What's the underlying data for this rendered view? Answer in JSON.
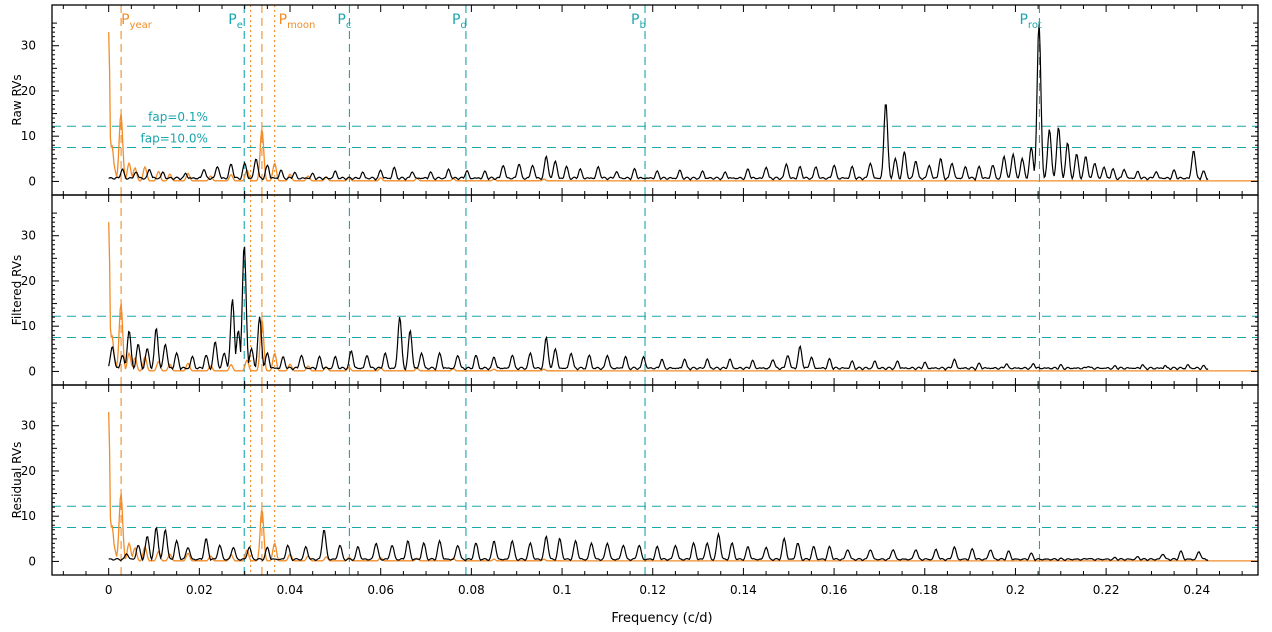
{
  "colors": {
    "orange": "#f28c28",
    "teal": "#1aa6ad",
    "black": "#000000",
    "frame": "#000000"
  },
  "chart_data": {
    "type": "line",
    "xlabel": "Frequency (c/d)",
    "xlim": [
      -0.0125,
      0.2535
    ],
    "ylim": [
      -3,
      39
    ],
    "grid": false,
    "xticks": [
      0,
      0.02,
      0.04,
      0.06,
      0.08,
      0.1,
      0.12,
      0.14,
      0.16,
      0.18,
      0.2,
      0.22,
      0.24
    ],
    "xtick_labels": [
      "0",
      "0.02",
      "0.04",
      "0.06",
      "0.08",
      "0.1",
      "0.12",
      "0.14",
      "0.16",
      "0.18",
      "0.2",
      "0.22",
      "0.24"
    ],
    "yticks": [
      0,
      10,
      20,
      30
    ],
    "ytick_labels": [
      "0",
      "10",
      "20",
      "30"
    ],
    "fap_levels": [
      {
        "label": "fap=0.1%",
        "value": 12.2
      },
      {
        "label": "fap=10.0%",
        "value": 7.5
      }
    ],
    "periods": [
      {
        "base": "P",
        "sub": "year",
        "freq": 0.00274,
        "color": "orange",
        "style": "dashed"
      },
      {
        "base": "P",
        "sub": "e",
        "freq": 0.0299,
        "color": "teal",
        "style": "dashed"
      },
      {
        "base": "P",
        "sub": "",
        "freq": 0.0313,
        "color": "orange",
        "style": "dotted"
      },
      {
        "base": "P",
        "sub": "",
        "freq": 0.0338,
        "color": "orange",
        "style": "dashed"
      },
      {
        "base": "P",
        "sub": "moon",
        "freq": 0.0366,
        "color": "orange",
        "style": "dotted"
      },
      {
        "base": "P",
        "sub": "c",
        "freq": 0.0531,
        "color": "teal",
        "style": "dashed"
      },
      {
        "base": "P",
        "sub": "d",
        "freq": 0.0788,
        "color": "teal",
        "style": "dashed"
      },
      {
        "base": "P",
        "sub": "b",
        "freq": 0.1183,
        "color": "teal",
        "style": "dashed"
      },
      {
        "base": "P",
        "sub": "rot",
        "freq": 0.2053,
        "color": "teal",
        "style": "dashed"
      }
    ],
    "window_function": {
      "name": "window",
      "color": "orange",
      "peaks": [
        [
          0.0,
          33
        ],
        [
          0.0007,
          8
        ],
        [
          0.0012,
          3
        ],
        [
          0.0027,
          15
        ],
        [
          0.0045,
          4
        ],
        [
          0.0058,
          3
        ],
        [
          0.008,
          3.2
        ],
        [
          0.011,
          2.2
        ],
        [
          0.0135,
          1.6
        ],
        [
          0.0175,
          1.8
        ],
        [
          0.0225,
          1.2
        ],
        [
          0.027,
          1.5
        ],
        [
          0.0305,
          2.5
        ],
        [
          0.0338,
          11.5
        ],
        [
          0.0366,
          4.0
        ],
        [
          0.04,
          1.6
        ],
        [
          0.044,
          1.2
        ],
        [
          0.048,
          1.0
        ],
        [
          0.053,
          0.9
        ],
        [
          0.06,
          0.8
        ],
        [
          0.068,
          0.7
        ],
        [
          0.076,
          0.6
        ],
        [
          0.085,
          0.5
        ],
        [
          0.096,
          0.5
        ]
      ]
    },
    "panels": [
      {
        "ylabel": "Raw RVs",
        "series": {
          "color": "black",
          "xmax": 0.2425,
          "peaks": [
            [
              0.003,
              2.5
            ],
            [
              0.006,
              2.0
            ],
            [
              0.009,
              2.5
            ],
            [
              0.012,
              1.8
            ],
            [
              0.017,
              1.5
            ],
            [
              0.021,
              2.5
            ],
            [
              0.024,
              3.2
            ],
            [
              0.027,
              3.8
            ],
            [
              0.03,
              4.0
            ],
            [
              0.0325,
              5.0
            ],
            [
              0.035,
              3.5
            ],
            [
              0.038,
              2.2
            ],
            [
              0.041,
              1.8
            ],
            [
              0.045,
              1.5
            ],
            [
              0.05,
              2.0
            ],
            [
              0.056,
              1.8
            ],
            [
              0.06,
              2.2
            ],
            [
              0.063,
              2.8
            ],
            [
              0.067,
              2.0
            ],
            [
              0.071,
              1.8
            ],
            [
              0.075,
              2.5
            ],
            [
              0.079,
              2.2
            ],
            [
              0.083,
              2.0
            ],
            [
              0.087,
              3.5
            ],
            [
              0.0905,
              3.8
            ],
            [
              0.0935,
              3.5
            ],
            [
              0.0965,
              5.5
            ],
            [
              0.0985,
              4.5
            ],
            [
              0.101,
              3.0
            ],
            [
              0.104,
              2.5
            ],
            [
              0.108,
              3.0
            ],
            [
              0.112,
              2.0
            ],
            [
              0.116,
              2.5
            ],
            [
              0.121,
              2.0
            ],
            [
              0.126,
              2.2
            ],
            [
              0.131,
              2.0
            ],
            [
              0.136,
              1.8
            ],
            [
              0.141,
              2.5
            ],
            [
              0.145,
              3.0
            ],
            [
              0.1495,
              3.8
            ],
            [
              0.1525,
              3.0
            ],
            [
              0.156,
              3.2
            ],
            [
              0.16,
              3.5
            ],
            [
              0.164,
              3.0
            ],
            [
              0.168,
              4.0
            ],
            [
              0.1714,
              17.5
            ],
            [
              0.1735,
              5.0
            ],
            [
              0.1755,
              6.5
            ],
            [
              0.178,
              4.5
            ],
            [
              0.181,
              3.5
            ],
            [
              0.1835,
              5.0
            ],
            [
              0.186,
              4.0
            ],
            [
              0.189,
              3.0
            ],
            [
              0.192,
              3.0
            ],
            [
              0.195,
              3.5
            ],
            [
              0.1975,
              5.5
            ],
            [
              0.1995,
              6.0
            ],
            [
              0.2015,
              5.0
            ],
            [
              0.2035,
              7.5
            ],
            [
              0.2052,
              35.0
            ],
            [
              0.2075,
              11.5
            ],
            [
              0.2095,
              12.0
            ],
            [
              0.2115,
              8.5
            ],
            [
              0.2135,
              6.0
            ],
            [
              0.2155,
              5.5
            ],
            [
              0.2175,
              4.0
            ],
            [
              0.2195,
              3.0
            ],
            [
              0.2215,
              2.5
            ],
            [
              0.224,
              2.5
            ],
            [
              0.227,
              2.0
            ],
            [
              0.231,
              2.0
            ],
            [
              0.235,
              2.2
            ],
            [
              0.2393,
              6.8
            ],
            [
              0.2415,
              2.0
            ]
          ]
        }
      },
      {
        "ylabel": "Filtered RVs",
        "series": {
          "color": "black",
          "xmax": 0.2425,
          "peaks": [
            [
              0.0008,
              5.5
            ],
            [
              0.003,
              3.5
            ],
            [
              0.0045,
              9.0
            ],
            [
              0.0065,
              6.0
            ],
            [
              0.0085,
              5.0
            ],
            [
              0.0105,
              9.5
            ],
            [
              0.0125,
              6.0
            ],
            [
              0.015,
              4.0
            ],
            [
              0.0185,
              3.0
            ],
            [
              0.0215,
              3.5
            ],
            [
              0.0235,
              6.5
            ],
            [
              0.0255,
              4.0
            ],
            [
              0.0273,
              16.0
            ],
            [
              0.0286,
              9.0
            ],
            [
              0.0299,
              28.0
            ],
            [
              0.0315,
              5.0
            ],
            [
              0.0333,
              12.0
            ],
            [
              0.035,
              4.0
            ],
            [
              0.0385,
              3.0
            ],
            [
              0.0425,
              3.5
            ],
            [
              0.0465,
              3.0
            ],
            [
              0.05,
              3.0
            ],
            [
              0.0535,
              4.5
            ],
            [
              0.057,
              3.5
            ],
            [
              0.061,
              4.0
            ],
            [
              0.0642,
              12.0
            ],
            [
              0.0665,
              9.0
            ],
            [
              0.069,
              4.0
            ],
            [
              0.073,
              4.0
            ],
            [
              0.077,
              3.5
            ],
            [
              0.081,
              3.5
            ],
            [
              0.085,
              3.0
            ],
            [
              0.089,
              3.5
            ],
            [
              0.093,
              4.0
            ],
            [
              0.0965,
              7.5
            ],
            [
              0.0985,
              5.0
            ],
            [
              0.102,
              4.0
            ],
            [
              0.106,
              3.5
            ],
            [
              0.11,
              3.5
            ],
            [
              0.114,
              3.0
            ],
            [
              0.118,
              3.0
            ],
            [
              0.122,
              2.5
            ],
            [
              0.127,
              2.5
            ],
            [
              0.132,
              2.5
            ],
            [
              0.137,
              2.5
            ],
            [
              0.142,
              2.2
            ],
            [
              0.1465,
              2.5
            ],
            [
              0.1498,
              3.5
            ],
            [
              0.1525,
              5.5
            ],
            [
              0.155,
              3.0
            ],
            [
              0.159,
              2.5
            ],
            [
              0.164,
              2.0
            ],
            [
              0.169,
              2.0
            ],
            [
              0.174,
              2.0
            ],
            [
              0.18,
              1.8
            ],
            [
              0.1865,
              2.5
            ],
            [
              0.192,
              1.5
            ],
            [
              0.198,
              1.5
            ],
            [
              0.204,
              1.5
            ],
            [
              0.21,
              1.2
            ],
            [
              0.216,
              1.0
            ],
            [
              0.222,
              1.0
            ],
            [
              0.228,
              1.2
            ],
            [
              0.233,
              1.0
            ],
            [
              0.238,
              1.2
            ],
            [
              0.2415,
              1.0
            ]
          ]
        }
      },
      {
        "ylabel": "Residual RVs",
        "series": {
          "color": "black",
          "xmax": 0.2425,
          "peaks": [
            [
              0.004,
              1.5
            ],
            [
              0.0065,
              3.5
            ],
            [
              0.0085,
              5.5
            ],
            [
              0.0105,
              7.5
            ],
            [
              0.0125,
              7.0
            ],
            [
              0.015,
              4.5
            ],
            [
              0.0175,
              3.0
            ],
            [
              0.0215,
              5.0
            ],
            [
              0.0245,
              3.5
            ],
            [
              0.0275,
              3.0
            ],
            [
              0.031,
              3.0
            ],
            [
              0.035,
              2.8
            ],
            [
              0.0395,
              3.5
            ],
            [
              0.0435,
              3.0
            ],
            [
              0.0475,
              7.0
            ],
            [
              0.051,
              3.5
            ],
            [
              0.055,
              3.0
            ],
            [
              0.059,
              4.0
            ],
            [
              0.0625,
              3.5
            ],
            [
              0.066,
              4.5
            ],
            [
              0.0695,
              4.0
            ],
            [
              0.073,
              4.5
            ],
            [
              0.077,
              3.5
            ],
            [
              0.081,
              4.0
            ],
            [
              0.085,
              4.5
            ],
            [
              0.089,
              4.5
            ],
            [
              0.093,
              4.0
            ],
            [
              0.0965,
              5.5
            ],
            [
              0.0995,
              5.0
            ],
            [
              0.103,
              4.5
            ],
            [
              0.1065,
              4.0
            ],
            [
              0.11,
              4.0
            ],
            [
              0.1135,
              3.5
            ],
            [
              0.117,
              3.5
            ],
            [
              0.121,
              3.0
            ],
            [
              0.125,
              3.5
            ],
            [
              0.129,
              4.0
            ],
            [
              0.132,
              4.0
            ],
            [
              0.1345,
              6.0
            ],
            [
              0.1375,
              4.0
            ],
            [
              0.141,
              3.0
            ],
            [
              0.145,
              3.0
            ],
            [
              0.149,
              5.0
            ],
            [
              0.152,
              4.0
            ],
            [
              0.1555,
              3.0
            ],
            [
              0.159,
              3.0
            ],
            [
              0.163,
              2.5
            ],
            [
              0.168,
              2.5
            ],
            [
              0.173,
              2.5
            ],
            [
              0.178,
              2.5
            ],
            [
              0.1825,
              2.5
            ],
            [
              0.1865,
              3.0
            ],
            [
              0.1905,
              2.5
            ],
            [
              0.1945,
              2.5
            ],
            [
              0.1985,
              2.0
            ],
            [
              0.2035,
              1.5
            ],
            [
              0.21,
              0.4
            ],
            [
              0.216,
              0.5
            ],
            [
              0.222,
              0.6
            ],
            [
              0.227,
              0.8
            ],
            [
              0.2325,
              1.5
            ],
            [
              0.2365,
              2.0
            ],
            [
              0.2405,
              2.0
            ]
          ]
        }
      }
    ]
  }
}
